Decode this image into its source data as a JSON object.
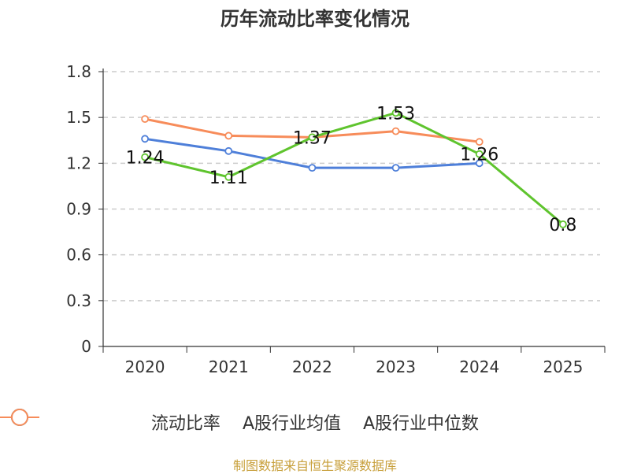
{
  "chart_data": {
    "type": "line",
    "title": "历年流动比率变化情况",
    "categories": [
      "2020",
      "2021",
      "2022",
      "2023",
      "2024",
      "2025"
    ],
    "yticks": [
      "0",
      "0.3",
      "0.6",
      "0.9",
      "1.2",
      "1.5",
      "1.8"
    ],
    "ylim": [
      0,
      1.8
    ],
    "grid": true,
    "legend_position": "bottom",
    "series": [
      {
        "name": "流动比率",
        "color": "#5fc42e",
        "values": [
          1.24,
          1.11,
          1.37,
          1.53,
          1.26,
          0.8
        ],
        "labels": [
          "1.24",
          "1.11",
          "1.37",
          "1.53",
          "1.26",
          "0.8"
        ],
        "show_labels": true
      },
      {
        "name": "A股行业均值",
        "color": "#4e7fd9",
        "values": [
          1.36,
          1.28,
          1.17,
          1.17,
          1.2,
          null
        ],
        "show_labels": false
      },
      {
        "name": "A股行业中位数",
        "color": "#f78c5a",
        "values": [
          1.49,
          1.38,
          1.37,
          1.41,
          1.34,
          null
        ],
        "show_labels": false
      }
    ]
  },
  "footer": {
    "source": "制图数据来自恒生聚源数据库",
    "source_color": "#c8a03c"
  }
}
